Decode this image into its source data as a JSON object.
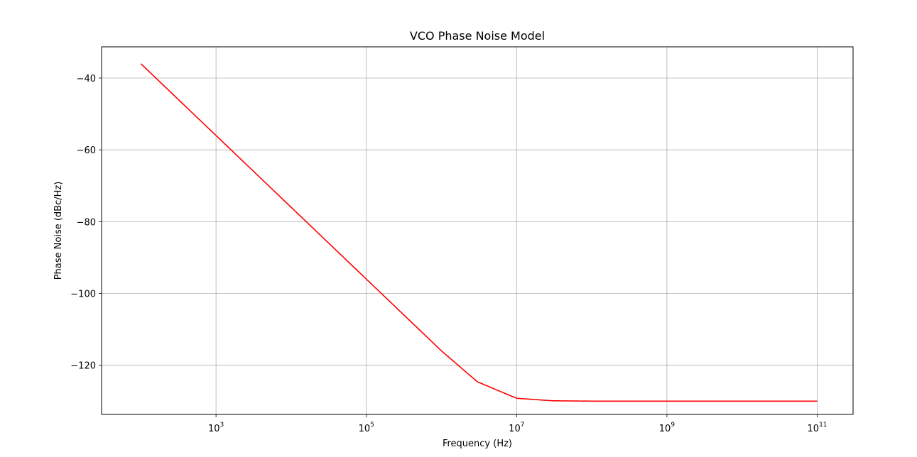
{
  "chart_data": {
    "type": "line",
    "title": "VCO Phase Noise Model",
    "xlabel": "Frequency (Hz)",
    "ylabel": "Phase Noise (dBc/Hz)",
    "xscale": "log",
    "xlim": [
      30,
      300000000000
    ],
    "ylim": [
      -133.7,
      -31.3
    ],
    "grid": true,
    "x_ticks": [
      {
        "base": "10",
        "exp": "3",
        "value": 1000
      },
      {
        "base": "10",
        "exp": "5",
        "value": 100000
      },
      {
        "base": "10",
        "exp": "7",
        "value": 10000000
      },
      {
        "base": "10",
        "exp": "9",
        "value": 1000000000
      },
      {
        "base": "10",
        "exp": "11",
        "value": 100000000000
      }
    ],
    "y_ticks": [
      {
        "label": "−40",
        "value": -40
      },
      {
        "label": "−60",
        "value": -60
      },
      {
        "label": "−80",
        "value": -80
      },
      {
        "label": "−100",
        "value": -100
      },
      {
        "label": "−120",
        "value": -120
      }
    ],
    "series": [
      {
        "color": "#ff0000",
        "x": [
          100,
          1000,
          10000,
          100000,
          1000000,
          3000000,
          10000000,
          30000000,
          100000000,
          1000000000,
          10000000000,
          100000000000
        ],
        "y": [
          -36,
          -56,
          -76,
          -96,
          -116,
          -124.6,
          -129.2,
          -129.9,
          -130,
          -130,
          -130,
          -130
        ]
      }
    ]
  }
}
